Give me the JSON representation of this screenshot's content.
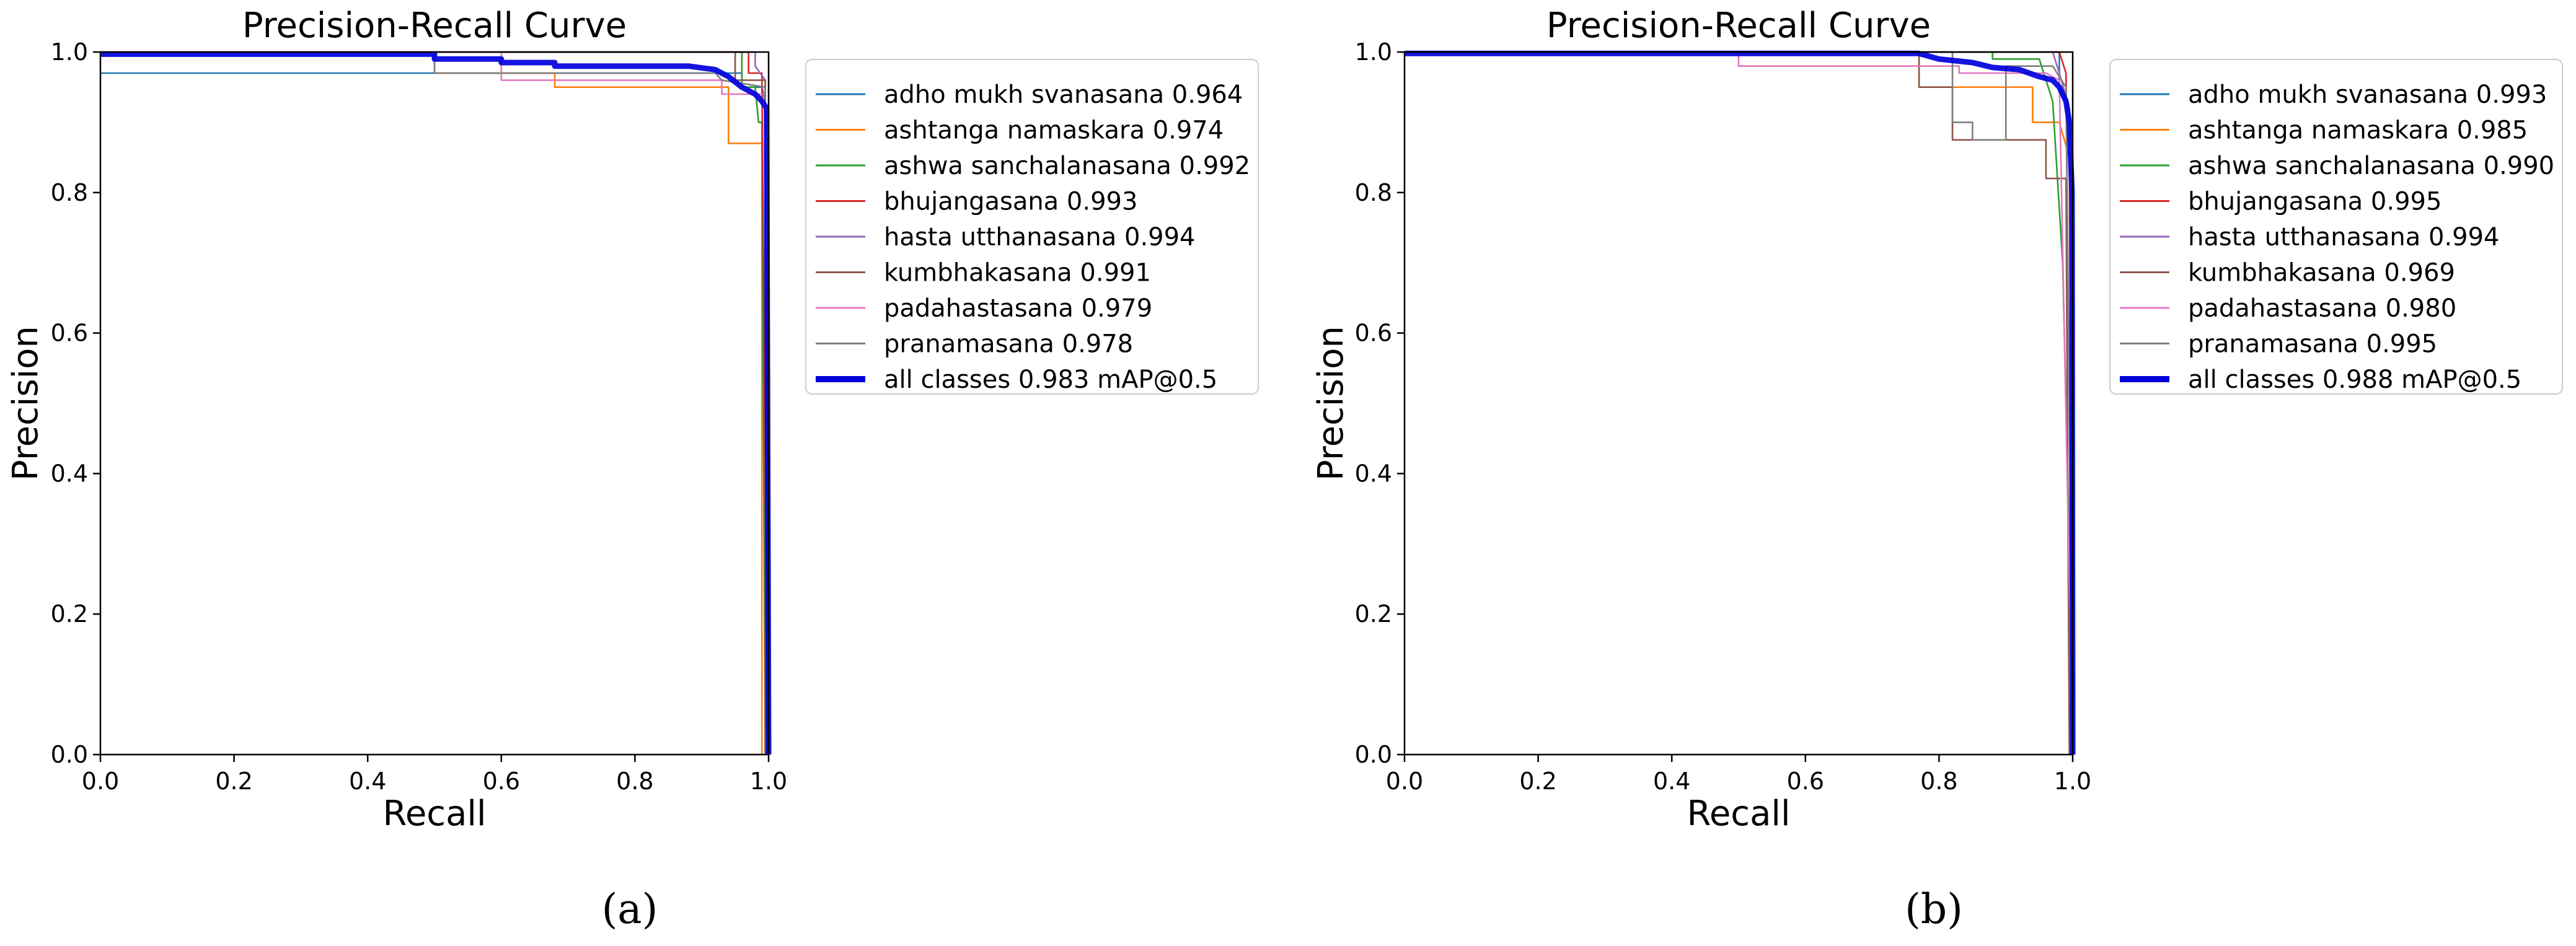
{
  "chart_data": [
    {
      "type": "line",
      "panel_label": "(a)",
      "title": "Precision-Recall Curve",
      "xlabel": "Recall",
      "ylabel": "Precision",
      "xlim": [
        0,
        1
      ],
      "ylim": [
        0,
        1
      ],
      "xticks": [
        "0.0",
        "0.2",
        "0.4",
        "0.6",
        "0.8",
        "1.0"
      ],
      "yticks": [
        "0.0",
        "0.2",
        "0.4",
        "0.6",
        "0.8",
        "1.0"
      ],
      "legend_position": "outside-right-top",
      "series": [
        {
          "name": "adho mukh svanasana 0.964",
          "color": "#1f77b4",
          "width": 1,
          "points": [
            [
              0,
              0.97
            ],
            [
              0.96,
              0.97
            ],
            [
              0.96,
              0.95
            ],
            [
              0.99,
              0.95
            ],
            [
              0.995,
              0.93
            ],
            [
              0.998,
              0.5
            ],
            [
              1.0,
              0.0
            ]
          ]
        },
        {
          "name": "ashtanga namaskara 0.974",
          "color": "#ff7f0e",
          "width": 1,
          "points": [
            [
              0,
              1.0
            ],
            [
              0.5,
              1.0
            ],
            [
              0.5,
              0.97
            ],
            [
              0.68,
              0.97
            ],
            [
              0.68,
              0.95
            ],
            [
              0.94,
              0.95
            ],
            [
              0.94,
              0.87
            ],
            [
              0.99,
              0.87
            ],
            [
              0.99,
              0.0
            ]
          ]
        },
        {
          "name": "ashwa sanchalanasana 0.992",
          "color": "#2ca02c",
          "width": 1,
          "points": [
            [
              0,
              1.0
            ],
            [
              0.96,
              1.0
            ],
            [
              0.96,
              0.95
            ],
            [
              0.98,
              0.95
            ],
            [
              0.985,
              0.9
            ],
            [
              0.99,
              0.9
            ],
            [
              0.995,
              0.0
            ]
          ]
        },
        {
          "name": "bhujangasana 0.993",
          "color": "#d62728",
          "width": 1,
          "points": [
            [
              0,
              1.0
            ],
            [
              0.97,
              1.0
            ],
            [
              0.97,
              0.97
            ],
            [
              0.99,
              0.97
            ],
            [
              0.998,
              0.0
            ]
          ]
        },
        {
          "name": "hasta utthanasana 0.994",
          "color": "#9467bd",
          "width": 1,
          "points": [
            [
              0,
              1.0
            ],
            [
              0.98,
              1.0
            ],
            [
              0.98,
              0.98
            ],
            [
              0.995,
              0.96
            ],
            [
              1.0,
              0.0
            ]
          ]
        },
        {
          "name": "kumbhakasana 0.991",
          "color": "#8c564b",
          "width": 1,
          "points": [
            [
              0,
              1.0
            ],
            [
              0.95,
              1.0
            ],
            [
              0.95,
              0.96
            ],
            [
              0.995,
              0.96
            ],
            [
              0.995,
              0.0
            ]
          ]
        },
        {
          "name": "padahastasana 0.979",
          "color": "#e377c2",
          "width": 1,
          "points": [
            [
              0,
              1.0
            ],
            [
              0.6,
              1.0
            ],
            [
              0.6,
              0.96
            ],
            [
              0.93,
              0.96
            ],
            [
              0.93,
              0.94
            ],
            [
              0.995,
              0.94
            ],
            [
              0.998,
              0.0
            ]
          ]
        },
        {
          "name": "pranamasana 0.978",
          "color": "#7f7f7f",
          "width": 1,
          "points": [
            [
              0,
              1.0
            ],
            [
              0.5,
              1.0
            ],
            [
              0.5,
              0.97
            ],
            [
              0.92,
              0.97
            ],
            [
              0.93,
              0.96
            ],
            [
              0.995,
              0.95
            ],
            [
              0.998,
              0.0
            ]
          ]
        },
        {
          "name": "all classes 0.983 mAP@0.5",
          "color": "#0000dd",
          "width": 3,
          "points": [
            [
              0,
              0.997
            ],
            [
              0.5,
              0.997
            ],
            [
              0.5,
              0.99
            ],
            [
              0.6,
              0.99
            ],
            [
              0.6,
              0.985
            ],
            [
              0.68,
              0.985
            ],
            [
              0.68,
              0.98
            ],
            [
              0.88,
              0.98
            ],
            [
              0.92,
              0.975
            ],
            [
              0.94,
              0.965
            ],
            [
              0.96,
              0.95
            ],
            [
              0.98,
              0.94
            ],
            [
              0.99,
              0.93
            ],
            [
              0.997,
              0.92
            ],
            [
              1.0,
              0.0
            ]
          ]
        }
      ]
    },
    {
      "type": "line",
      "panel_label": "(b)",
      "title": "Precision-Recall Curve",
      "xlabel": "Recall",
      "ylabel": "Precision",
      "xlim": [
        0,
        1
      ],
      "ylim": [
        0,
        1
      ],
      "xticks": [
        "0.0",
        "0.2",
        "0.4",
        "0.6",
        "0.8",
        "1.0"
      ],
      "yticks": [
        "0.0",
        "0.2",
        "0.4",
        "0.6",
        "0.8",
        "1.0"
      ],
      "legend_position": "outside-right-top",
      "series": [
        {
          "name": "adho mukh svanasana 0.993",
          "color": "#1f77b4",
          "width": 1,
          "points": [
            [
              0,
              1.0
            ],
            [
              0.98,
              1.0
            ],
            [
              0.98,
              0.95
            ],
            [
              0.995,
              0.92
            ],
            [
              1.0,
              0.0
            ]
          ]
        },
        {
          "name": "ashtanga namaskara 0.985",
          "color": "#ff7f0e",
          "width": 1,
          "points": [
            [
              0,
              1.0
            ],
            [
              0.77,
              1.0
            ],
            [
              0.77,
              0.95
            ],
            [
              0.94,
              0.95
            ],
            [
              0.94,
              0.9
            ],
            [
              0.98,
              0.9
            ],
            [
              0.995,
              0.85
            ],
            [
              1.0,
              0.0
            ]
          ]
        },
        {
          "name": "ashwa sanchalanasana 0.990",
          "color": "#2ca02c",
          "width": 1,
          "points": [
            [
              0,
              1.0
            ],
            [
              0.88,
              1.0
            ],
            [
              0.88,
              0.99
            ],
            [
              0.95,
              0.99
            ],
            [
              0.97,
              0.93
            ],
            [
              0.985,
              0.7
            ],
            [
              0.995,
              0.3
            ],
            [
              1.0,
              0.0
            ]
          ]
        },
        {
          "name": "bhujangasana 0.995",
          "color": "#d62728",
          "width": 1,
          "points": [
            [
              0,
              1.0
            ],
            [
              0.98,
              1.0
            ],
            [
              0.99,
              0.97
            ],
            [
              1.0,
              0.0
            ]
          ]
        },
        {
          "name": "hasta utthanasana 0.994",
          "color": "#9467bd",
          "width": 1,
          "points": [
            [
              0,
              1.0
            ],
            [
              0.97,
              1.0
            ],
            [
              0.98,
              0.97
            ],
            [
              0.995,
              0.92
            ],
            [
              1.0,
              0.0
            ]
          ]
        },
        {
          "name": "kumbhakasana 0.969",
          "color": "#8c564b",
          "width": 1,
          "points": [
            [
              0,
              1.0
            ],
            [
              0.77,
              1.0
            ],
            [
              0.77,
              0.95
            ],
            [
              0.82,
              0.95
            ],
            [
              0.82,
              0.875
            ],
            [
              0.96,
              0.875
            ],
            [
              0.96,
              0.82
            ],
            [
              0.99,
              0.82
            ],
            [
              0.995,
              0.0
            ]
          ]
        },
        {
          "name": "padahastasana 0.980",
          "color": "#e377c2",
          "width": 1,
          "points": [
            [
              0,
              1.0
            ],
            [
              0.5,
              1.0
            ],
            [
              0.5,
              0.98
            ],
            [
              0.83,
              0.98
            ],
            [
              0.83,
              0.97
            ],
            [
              0.96,
              0.97
            ],
            [
              0.98,
              0.96
            ],
            [
              1.0,
              0.0
            ]
          ]
        },
        {
          "name": "pranamasana 0.995",
          "color": "#7f7f7f",
          "width": 1,
          "points": [
            [
              0,
              1.0
            ],
            [
              0.82,
              1.0
            ],
            [
              0.82,
              0.9
            ],
            [
              0.85,
              0.9
            ],
            [
              0.85,
              0.875
            ],
            [
              0.9,
              0.875
            ],
            [
              0.9,
              0.98
            ],
            [
              0.97,
              0.98
            ],
            [
              0.99,
              0.95
            ],
            [
              1.0,
              0.0
            ]
          ]
        },
        {
          "name": "all classes 0.988 mAP@0.5",
          "color": "#0000dd",
          "width": 3,
          "points": [
            [
              0,
              0.998
            ],
            [
              0.77,
              0.998
            ],
            [
              0.8,
              0.99
            ],
            [
              0.85,
              0.985
            ],
            [
              0.88,
              0.978
            ],
            [
              0.92,
              0.975
            ],
            [
              0.95,
              0.965
            ],
            [
              0.97,
              0.96
            ],
            [
              0.98,
              0.95
            ],
            [
              0.99,
              0.93
            ],
            [
              0.995,
              0.9
            ],
            [
              0.999,
              0.8
            ],
            [
              1.0,
              0.0
            ]
          ]
        }
      ]
    }
  ]
}
